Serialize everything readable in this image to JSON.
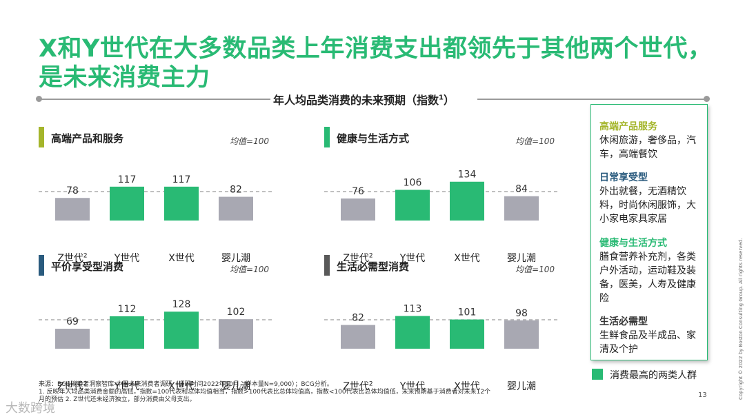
{
  "title": {
    "line1": "X和Y世代在大多数品类上年消费支出都领先于其他两个世代，",
    "line2": "是未来消费主力"
  },
  "subheading": {
    "text": "年人均品类消费的未来预期（指数",
    "sup": "1",
    "close": "）"
  },
  "avg_label": "均值=100",
  "colors": {
    "green": "#29BA74",
    "gray": "#A8A8B2",
    "dash": "#9A9A9A",
    "marker_olive": "#A4B52B",
    "marker_navy": "#2A5B7E",
    "marker_gray": "#595959"
  },
  "chart_data": [
    {
      "type": "bar",
      "title": "高端产品和服务",
      "marker": "olive",
      "categories": [
        "Z世代",
        "Y世代",
        "X世代",
        "婴儿潮"
      ],
      "category_sup": [
        "2",
        "",
        "",
        ""
      ],
      "values": [
        78,
        117,
        117,
        82
      ],
      "highlight": [
        false,
        true,
        true,
        false
      ],
      "reference_line": 100,
      "ylim": [
        0,
        140
      ]
    },
    {
      "type": "bar",
      "title": "健康与生活方式",
      "marker": "green",
      "categories": [
        "Z世代",
        "Y世代",
        "X世代",
        "婴儿潮"
      ],
      "category_sup": [
        "2",
        "",
        "",
        ""
      ],
      "values": [
        76,
        106,
        134,
        84
      ],
      "highlight": [
        false,
        true,
        true,
        false
      ],
      "reference_line": 100,
      "ylim": [
        0,
        140
      ]
    },
    {
      "type": "bar",
      "title": "平价享受型消费",
      "marker": "navy",
      "categories": [
        "Z世代",
        "Y世代",
        "X世代",
        "婴儿潮"
      ],
      "category_sup": [
        "2",
        "",
        "",
        ""
      ],
      "values": [
        69,
        112,
        128,
        102
      ],
      "highlight": [
        false,
        true,
        true,
        false
      ],
      "reference_line": 100,
      "ylim": [
        0,
        140
      ]
    },
    {
      "type": "bar",
      "title": "生活必需型消费",
      "marker": "gray",
      "categories": [
        "Z世代",
        "Y世代",
        "X世代",
        "婴儿潮"
      ],
      "category_sup": [
        "2",
        "",
        "",
        ""
      ],
      "values": [
        82,
        113,
        101,
        98
      ],
      "highlight": [
        false,
        true,
        true,
        false
      ],
      "reference_line": 100,
      "ylim": [
        0,
        140
      ]
    }
  ],
  "legend_box": [
    {
      "head": "高端产品服务",
      "head_color": "#A4B52B",
      "body": "休闲旅游，奢侈品，汽车，高端餐饮"
    },
    {
      "head": "日常享受型",
      "head_color": "#2A5B7E",
      "body": "外出就餐，无酒精饮料，时尚休闲服饰，大小家电家具家居"
    },
    {
      "head": "健康与生活方式",
      "head_color": "#29BA74",
      "body": "膳食营养补充剂，各类户外活动，运动鞋及装备，医美，人寿及健康险"
    },
    {
      "head": "生活必需型",
      "head_color": "#333333",
      "body": "生鲜食品及半成品、家清及个护"
    }
  ],
  "key_label": "消费最高的两类人群",
  "source": {
    "line1": "来源：BCG消费者洞察智库-中国未来消费者调研（调研时间2022年10月，样本量N=9,000）；BCG分析。",
    "line2": "1. 反映年人均品类消费金额的高低，指数=100代表和总体均值相当，指数>100代表比总体均值高，指数<100代表比总体均值低，未来预期基于消费者对未来12个",
    "line3": "月的预估 2. Z世代还未经济独立，部分消费由父母支出。"
  },
  "page_number": "13",
  "copyright": "Copyright © 2022 by Boston Consulting Group. All rights reserved.",
  "watermark": "大数跨境"
}
